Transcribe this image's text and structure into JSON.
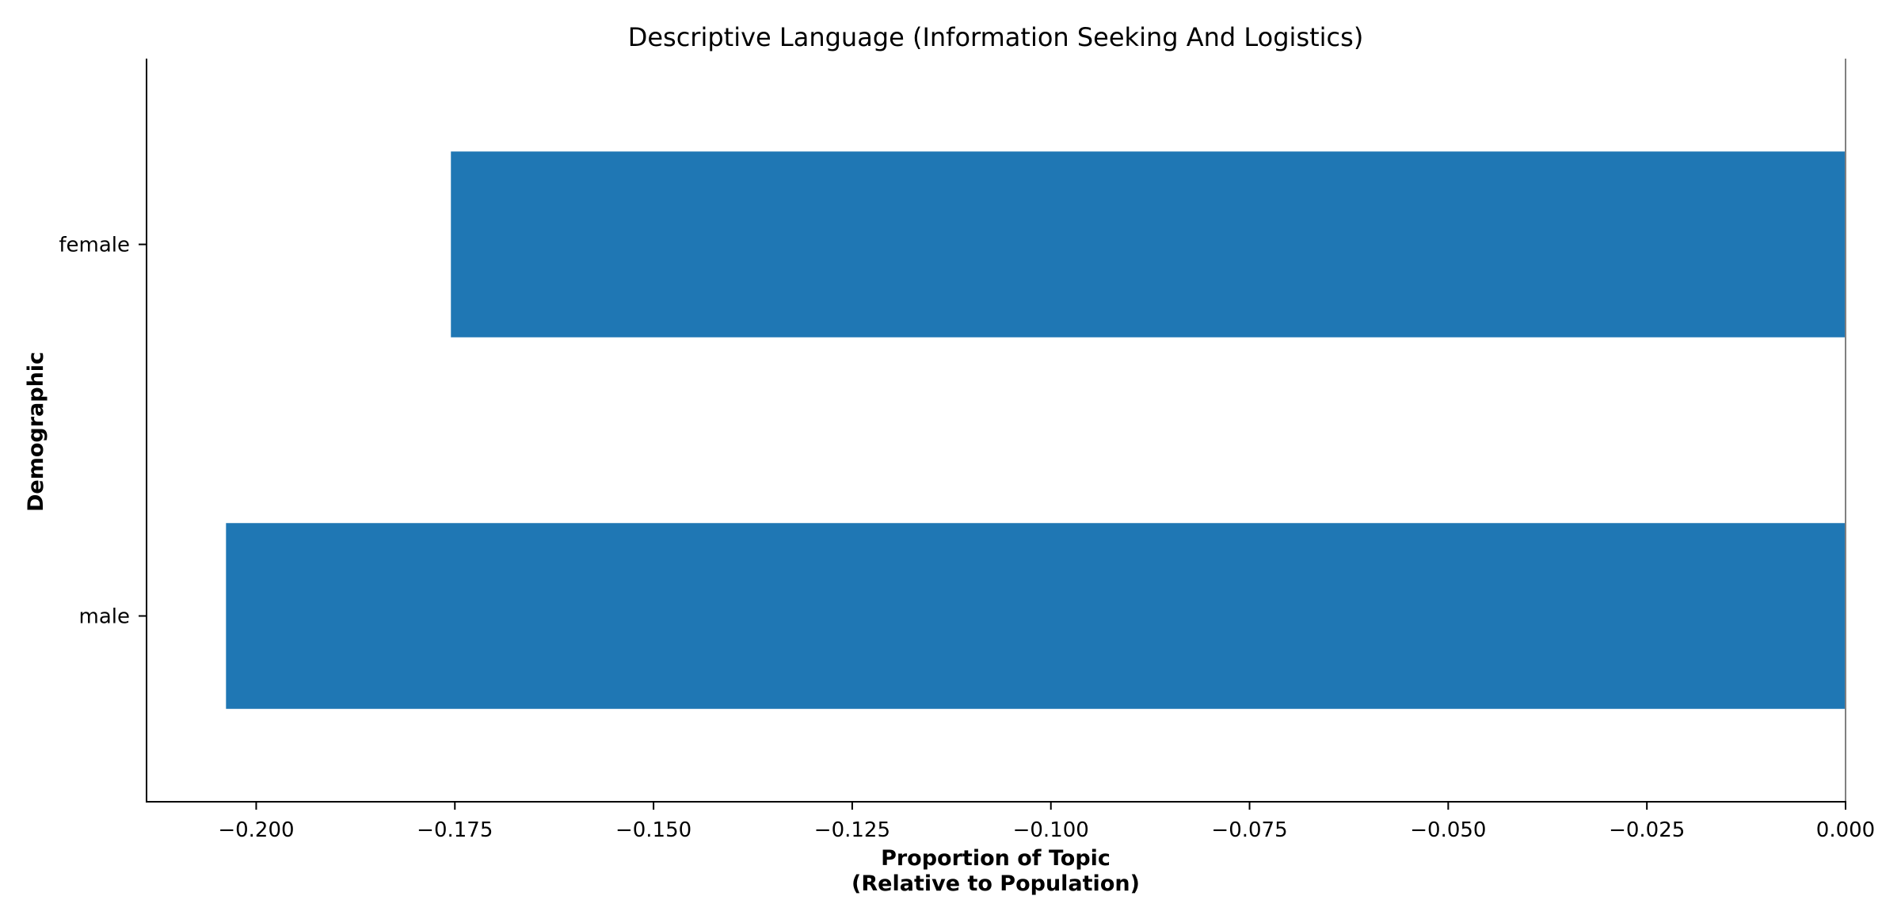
{
  "chart_data": {
    "type": "bar",
    "orientation": "horizontal",
    "title": "Descriptive Language (Information Seeking And Logistics)",
    "xlabel_line1": "Proportion of Topic",
    "xlabel_line2": "(Relative to Population)",
    "ylabel": "Demographic",
    "categories": [
      "female",
      "male"
    ],
    "values": [
      -0.1755,
      -0.2038
    ],
    "xlim": [
      -0.2138,
      0.0
    ],
    "x_ticks": [
      -0.2,
      -0.175,
      -0.15,
      -0.125,
      -0.1,
      -0.075,
      -0.05,
      -0.025,
      0.0
    ],
    "x_tick_labels": [
      "−0.200",
      "−0.175",
      "−0.150",
      "−0.125",
      "−0.100",
      "−0.075",
      "−0.050",
      "−0.025",
      "0.000"
    ],
    "bar_color": "#1f77b4",
    "zero_line_color": "#808080",
    "grid": false,
    "legend": "none"
  }
}
